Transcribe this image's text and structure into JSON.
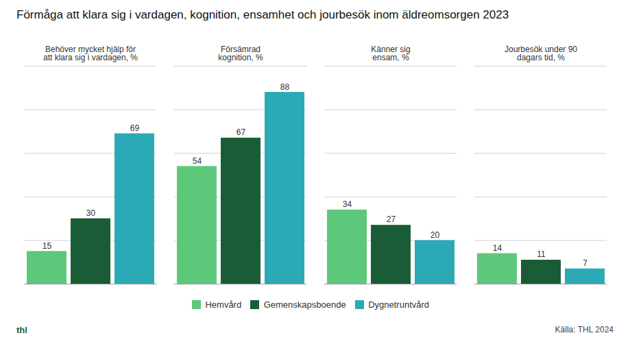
{
  "chart_data": {
    "type": "bar",
    "title": "Förmåga att klara sig i vardagen, kognition, ensamhet och jourbesök inom äldreomsorgen 2023",
    "categories": [
      "Behöver mycket hjälp för\natt klara sig i vardagen, %",
      "Försämrad\nkognition, %",
      "Känner sig\nensam, %",
      "Jourbesök under 90\ndagars tid, %"
    ],
    "series": [
      {
        "name": "Hemvård",
        "color": "#5ec87a",
        "values": [
          15,
          54,
          34,
          14
        ]
      },
      {
        "name": "Gemenskapsboende",
        "color": "#1a5c35",
        "values": [
          30,
          67,
          27,
          11
        ]
      },
      {
        "name": "Dygnetruntvård",
        "color": "#2baab5",
        "values": [
          69,
          88,
          20,
          7
        ]
      }
    ],
    "ylim": [
      0,
      100
    ],
    "yticks": [
      20,
      40,
      60,
      80,
      100
    ],
    "grid": true,
    "legend": "bottom",
    "data_labels": true,
    "tick_labels": "x",
    "annotations": [
      "Källa: THL 2024",
      "thl"
    ]
  }
}
